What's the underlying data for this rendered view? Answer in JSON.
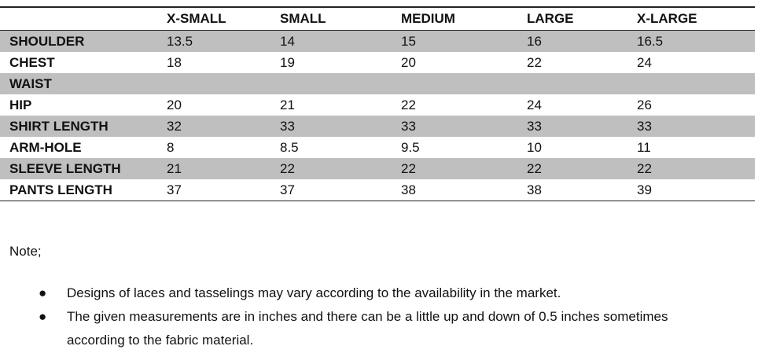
{
  "table": {
    "headers": [
      "",
      "X-SMALL",
      "SMALL",
      "MEDIUM",
      "LARGE",
      "X-LARGE"
    ],
    "rows": [
      {
        "label": "SHOULDER",
        "values": [
          "13.5",
          "14",
          "15",
          "16",
          "16.5"
        ]
      },
      {
        "label": "CHEST",
        "values": [
          "18",
          "19",
          "20",
          "22",
          "24"
        ]
      },
      {
        "label": "WAIST",
        "values": [
          "",
          "",
          "",
          "",
          ""
        ]
      },
      {
        "label": "HIP",
        "values": [
          "20",
          "21",
          "22",
          "24",
          "26"
        ]
      },
      {
        "label": "SHIRT LENGTH",
        "values": [
          "32",
          "33",
          "33",
          "33",
          "33"
        ]
      },
      {
        "label": "ARM-HOLE",
        "values": [
          "8",
          "8.5",
          "9.5",
          "10",
          "11"
        ]
      },
      {
        "label": "SLEEVE LENGTH",
        "values": [
          "21",
          "22",
          "22",
          "22",
          "22"
        ]
      },
      {
        "label": "PANTS LENGTH",
        "values": [
          "37",
          "37",
          "38",
          "38",
          "39"
        ]
      }
    ],
    "shade_color": "#bfbfbf"
  },
  "note": {
    "title": "Note;",
    "bullets": [
      "Designs of laces and tasselings  may vary according to the availability in the market.",
      "The given measurements are in inches and there can be a little up and down of 0.5 inches sometimes according to the fabric material."
    ]
  }
}
